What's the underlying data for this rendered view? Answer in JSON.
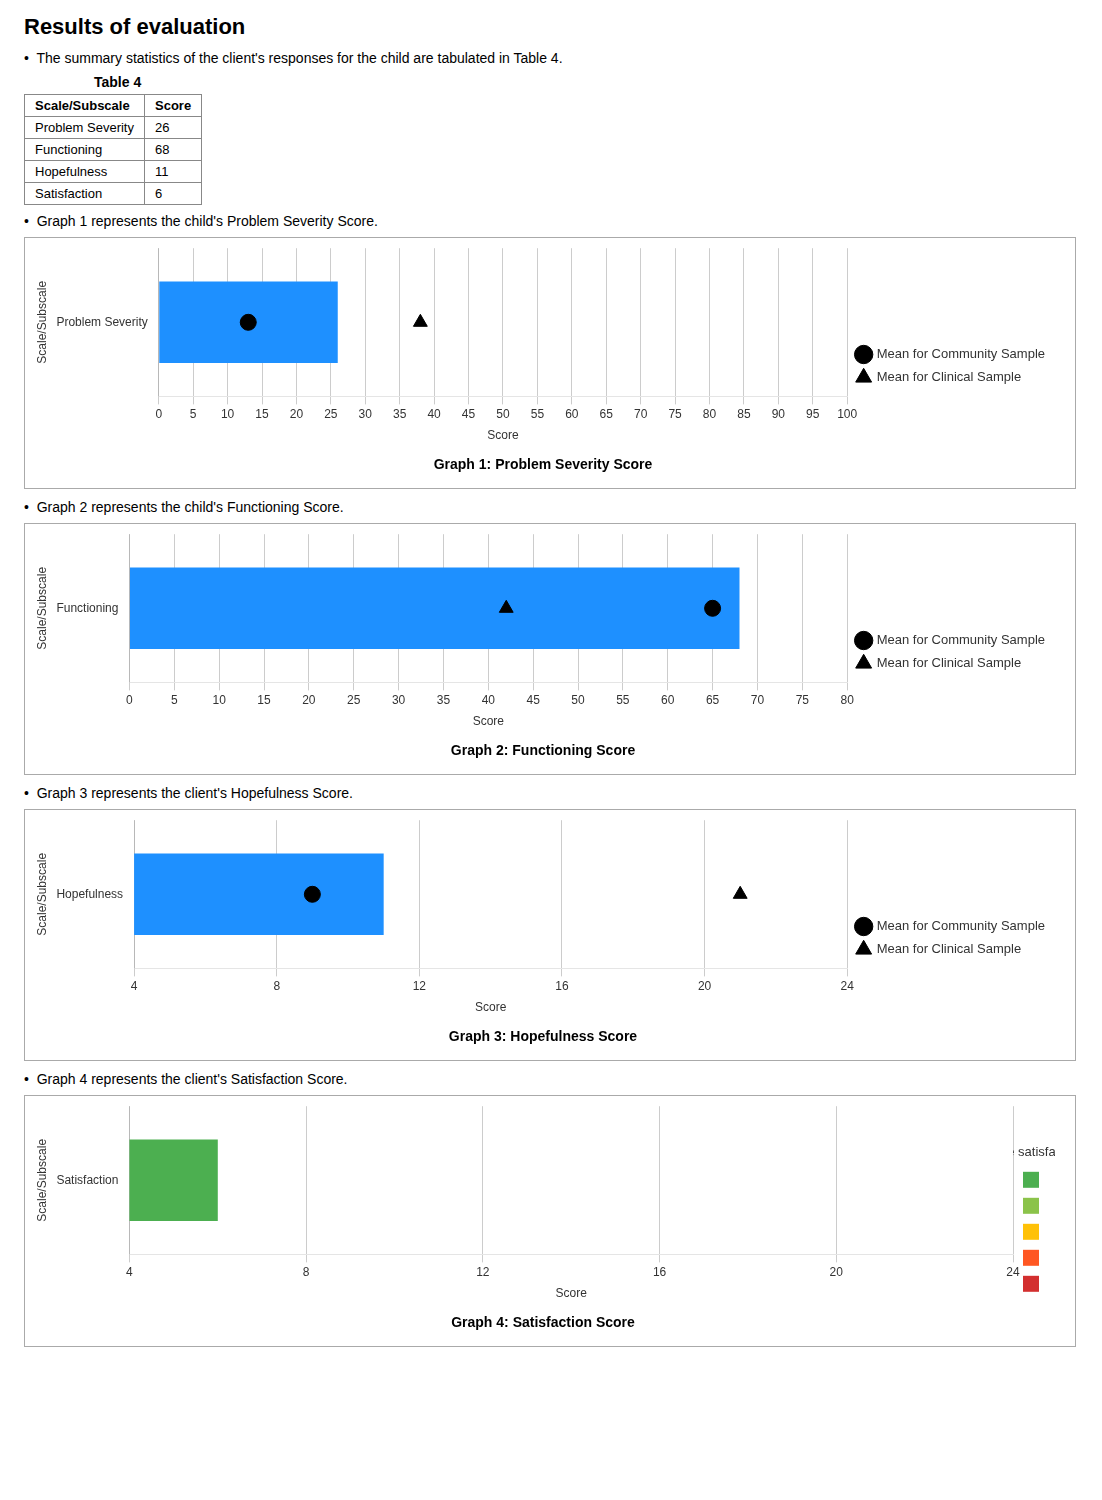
{
  "title": "Results of evaluation",
  "annotations": [
    "•  The summary statistics of the client's responses for the child are tabulated in Table 4."
  ],
  "table": {
    "title": "Table 4",
    "headers": [
      "Scale/Subscale",
      "Score"
    ],
    "rows": [
      [
        "Problem Severity",
        "26"
      ],
      [
        "Functioning",
        "68"
      ],
      [
        "Hopefulness",
        "11"
      ],
      [
        "Satisfaction",
        "6"
      ]
    ]
  },
  "chart_data": [
    {
      "type": "bar",
      "orientation": "horizontal",
      "annotations": [
        "•  Graph 1 represents the child's Problem Severity Score."
      ],
      "title": "Graph 1: Problem Severity Score",
      "categories": [
        "Problem Severity"
      ],
      "xlabel": "Score",
      "ylabel": "Scale/Subscale",
      "xlim": [
        0,
        100
      ],
      "xticks": [
        0,
        5,
        10,
        15,
        20,
        25,
        30,
        35,
        40,
        45,
        50,
        55,
        60,
        65,
        70,
        75,
        80,
        85,
        90,
        95,
        100
      ],
      "grid": true,
      "legend": "right",
      "series": [
        {
          "type": "bar",
          "color": "#1E90FF",
          "values": [
            26
          ]
        },
        {
          "name": "Mean for Community Sample",
          "type": "scatter",
          "marker": "circle",
          "color": "#000000",
          "values": [
            13
          ]
        },
        {
          "name": "Mean for Clinical Sample",
          "type": "scatter",
          "marker": "triangle",
          "color": "#000000",
          "values": [
            38
          ]
        }
      ]
    },
    {
      "type": "bar",
      "orientation": "horizontal",
      "annotations": [
        "•  Graph 2 represents the child's Functioning Score."
      ],
      "title": "Graph 2: Functioning Score",
      "categories": [
        "Functioning"
      ],
      "xlabel": "Score",
      "ylabel": "Scale/Subscale",
      "xlim": [
        0,
        80
      ],
      "xticks": [
        0,
        5,
        10,
        15,
        20,
        25,
        30,
        35,
        40,
        45,
        50,
        55,
        60,
        65,
        70,
        75,
        80
      ],
      "grid": true,
      "legend": "right",
      "series": [
        {
          "type": "bar",
          "color": "#1E90FF",
          "values": [
            68
          ]
        },
        {
          "name": "Mean for Community Sample",
          "type": "scatter",
          "marker": "circle",
          "color": "#000000",
          "values": [
            65
          ]
        },
        {
          "name": "Mean for Clinical Sample",
          "type": "scatter",
          "marker": "triangle",
          "color": "#000000",
          "values": [
            42
          ]
        }
      ]
    },
    {
      "type": "bar",
      "orientation": "horizontal",
      "annotations": [
        "•  Graph 3 represents the client's Hopefulness Score."
      ],
      "title": "Graph 3: Hopefulness Score",
      "categories": [
        "Hopefulness"
      ],
      "xlabel": "Score",
      "ylabel": "Scale/Subscale",
      "xlim": [
        4,
        24
      ],
      "xticks": [
        4,
        8,
        12,
        16,
        20,
        24
      ],
      "grid": true,
      "legend": "right",
      "series": [
        {
          "type": "bar",
          "color": "#1E90FF",
          "values": [
            11
          ]
        },
        {
          "name": "Mean for Community Sample",
          "type": "scatter",
          "marker": "circle",
          "color": "#000000",
          "values": [
            9
          ]
        },
        {
          "name": "Mean for Clinical Sample",
          "type": "scatter",
          "marker": "triangle",
          "color": "#000000",
          "values": [
            21
          ]
        }
      ]
    },
    {
      "type": "bar",
      "orientation": "horizontal",
      "annotations": [
        "•  Graph 4 represents the client's Satisfaction Score.",
        {
          "text": "more satisfaction",
          "colors": [
            "#4CAF50",
            "#8BC34A",
            "#FFC107",
            "#FF5722",
            "#D32F2F"
          ]
        }
      ],
      "title": "Graph 4: Satisfaction Score",
      "categories": [
        "Satisfaction"
      ],
      "xlabel": "Score",
      "ylabel": "Scale/Subscale",
      "xlim": [
        4,
        24
      ],
      "xticks": [
        4,
        8,
        12,
        16,
        20,
        24
      ],
      "grid": true,
      "legend": "right",
      "series": [
        {
          "type": "bar",
          "color": "#4CAF50",
          "values": [
            6
          ]
        }
      ]
    }
  ]
}
